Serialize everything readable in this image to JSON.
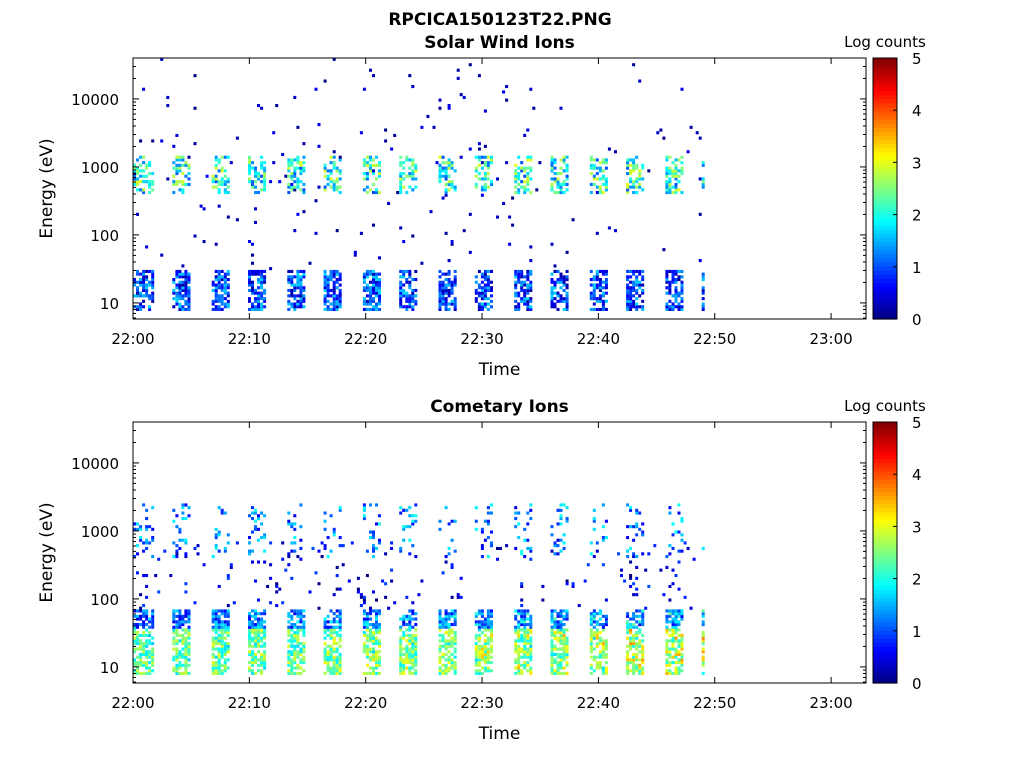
{
  "figure": {
    "title": "RPCICA150123T22.PNG",
    "colorbar_ticks": [
      "0",
      "1",
      "2",
      "3",
      "4",
      "5"
    ],
    "colormap": [
      "#00008f",
      "#0000ff",
      "#0080ff",
      "#00ffff",
      "#80ff80",
      "#ffff00",
      "#ff8000",
      "#ff0000",
      "#800000"
    ]
  },
  "chart_data": [
    {
      "type": "heatmap",
      "title": "Solar Wind Ions",
      "xlabel": "Time",
      "ylabel": "Energy (eV)",
      "colorbar_label": "Log counts",
      "clim": [
        0,
        5
      ],
      "y_scale": "log",
      "ylim": [
        5.8,
        40000
      ],
      "xlim": [
        "22:00",
        "23:03"
      ],
      "x_ticks": [
        "22:00",
        "22:10",
        "22:20",
        "22:30",
        "22:40",
        "22:50",
        "23:00"
      ],
      "y_ticks": [
        "10",
        "100",
        "1000",
        "10000"
      ],
      "data_end_time": "22:49",
      "sweep_period_min": 3.25,
      "bands": [
        {
          "energy_range_ev": [
            8,
            30
          ],
          "log_counts": [
            0.5,
            1.6
          ]
        },
        {
          "energy_range_ev": [
            400,
            1500
          ],
          "log_counts": [
            1,
            3
          ]
        },
        {
          "energy_range_ev": [
            30,
            40000
          ],
          "log_counts": [
            0,
            0.6
          ],
          "note": "sparse"
        }
      ]
    },
    {
      "type": "heatmap",
      "title": "Cometary Ions",
      "xlabel": "Time",
      "ylabel": "Energy (eV)",
      "colorbar_label": "Log counts",
      "clim": [
        0,
        5
      ],
      "y_scale": "log",
      "ylim": [
        5.8,
        40000
      ],
      "xlim": [
        "22:00",
        "23:03"
      ],
      "x_ticks": [
        "22:00",
        "22:10",
        "22:20",
        "22:30",
        "22:40",
        "22:50",
        "23:00"
      ],
      "y_ticks": [
        "10",
        "100",
        "1000",
        "10000"
      ],
      "data_end_time": "22:49",
      "sweep_period_min": 3.25,
      "bands": [
        {
          "energy_range_ev": [
            8,
            70
          ],
          "log_counts": [
            0.5,
            3.5
          ]
        },
        {
          "energy_range_ev": [
            400,
            2500
          ],
          "log_counts": [
            0.5,
            2
          ]
        },
        {
          "energy_range_ev": [
            70,
            700
          ],
          "log_counts": [
            0,
            1
          ],
          "note": "sparse"
        }
      ]
    }
  ]
}
